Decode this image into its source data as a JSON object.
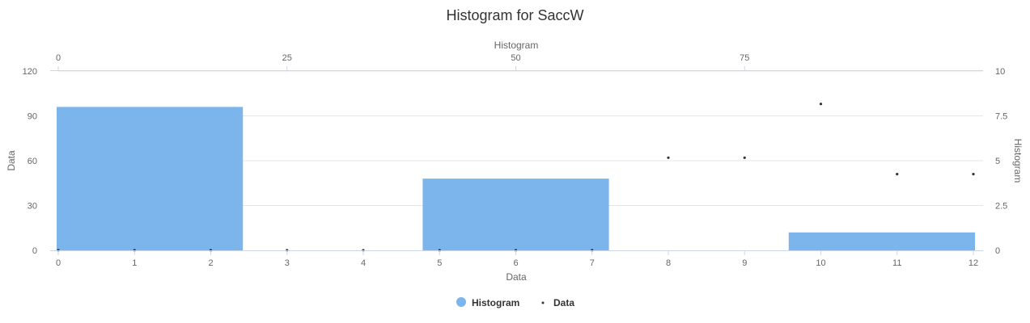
{
  "chart_data": {
    "type": "histogram",
    "title": "Histogram for SaccW",
    "x_bottom": {
      "label": "Data",
      "range": [
        0,
        12
      ],
      "ticks": [
        "0",
        "1",
        "2",
        "3",
        "4",
        "5",
        "6",
        "7",
        "8",
        "9",
        "10",
        "11",
        "12"
      ]
    },
    "x_top": {
      "label": "Histogram",
      "range": [
        0,
        100
      ],
      "ticks": [
        "0",
        "25",
        "50",
        "75"
      ]
    },
    "y_left": {
      "label": "Data",
      "range": [
        0,
        120
      ],
      "ticks": [
        "0",
        "30",
        "60",
        "90",
        "120"
      ]
    },
    "y_right": {
      "label": "Histogram",
      "range": [
        0,
        10
      ],
      "ticks": [
        "0",
        "2.5",
        "5",
        "7.5",
        "10"
      ]
    },
    "grid": true,
    "legend_position": "bottom-center",
    "series": [
      {
        "name": "Histogram",
        "kind": "column",
        "color": "#7cb5ec",
        "bins": [
          {
            "x0": 0,
            "x1": 2.4,
            "value": 8
          },
          {
            "x0": 4.8,
            "x1": 7.2,
            "value": 4
          },
          {
            "x0": 9.6,
            "x1": 12,
            "value": 1
          }
        ]
      },
      {
        "name": "Data",
        "kind": "scatter",
        "color": "#333333",
        "x": [
          0,
          1,
          2,
          3,
          4,
          5,
          6,
          7,
          8,
          9,
          10,
          11,
          12
        ],
        "y": [
          0,
          0,
          0,
          0,
          0,
          0,
          0,
          0,
          62,
          62,
          98,
          51,
          51
        ]
      }
    ]
  }
}
